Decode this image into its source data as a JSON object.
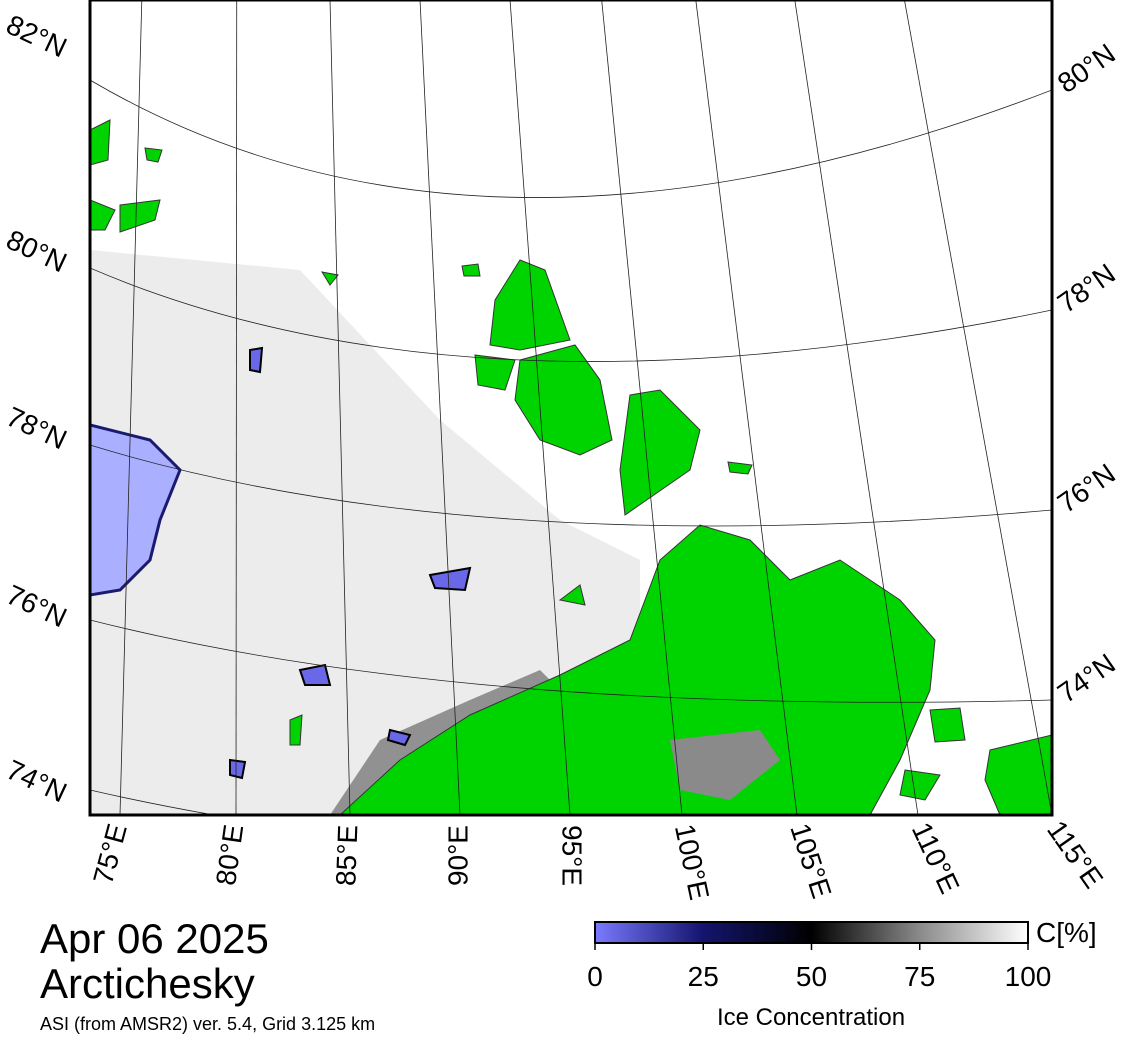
{
  "map": {
    "date": "Apr 06 2025",
    "region": "Arctichesky",
    "source": "ASI (from AMSR2) ver. 5.4,  Grid 3.125 km",
    "lat_labels_left": [
      "82°N",
      "80°N",
      "78°N",
      "76°N",
      "74°N"
    ],
    "lat_labels_right": [
      "80°N",
      "78°N",
      "76°N",
      "74°N"
    ],
    "lon_labels": [
      "75°E",
      "80°E",
      "85°E",
      "90°E",
      "95°E",
      "100°E",
      "105°E",
      "110°E",
      "115°E"
    ]
  },
  "colorbar": {
    "label": "Ice Concentration",
    "unit": "C[%]",
    "range": [
      0,
      100
    ],
    "ticks": [
      0,
      25,
      50,
      75,
      100
    ]
  }
}
